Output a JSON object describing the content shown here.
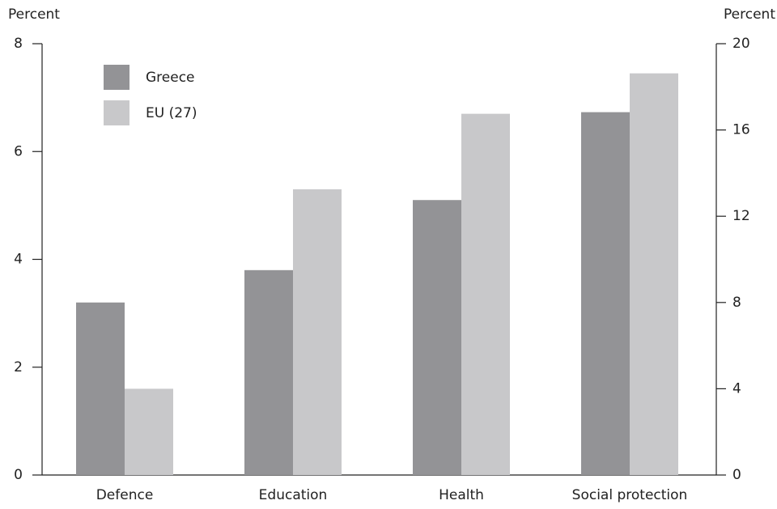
{
  "chart_data": {
    "type": "bar",
    "y_label": "Percent",
    "y2_label": "Percent",
    "categories": [
      "Defence",
      "Education",
      "Health",
      "Social protection"
    ],
    "series": [
      {
        "name": "Greece",
        "color": "#939396",
        "values": [
          3.2,
          3.8,
          5.1,
          6.73
        ]
      },
      {
        "name": "EU (27)",
        "color": "#c8c8ca",
        "values": [
          1.6,
          5.3,
          6.7,
          7.45
        ]
      }
    ],
    "ylim": [
      0,
      8
    ],
    "yticks": [
      0,
      2,
      4,
      6,
      8
    ],
    "y2lim": [
      0,
      20
    ],
    "y2ticks": [
      0,
      4,
      8,
      12,
      16,
      20
    ],
    "legend": "upper left"
  }
}
